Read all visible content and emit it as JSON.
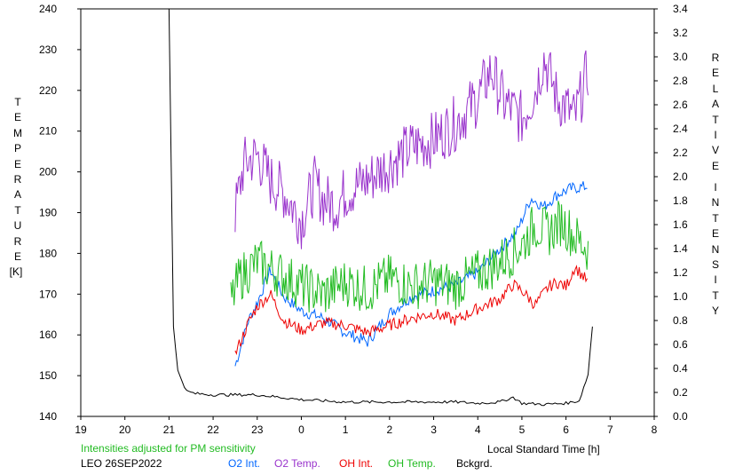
{
  "chart_data": {
    "type": "line",
    "left_axis_label": [
      "T",
      "E",
      "M",
      "P",
      "E",
      "R",
      "A",
      "T",
      "U",
      "R",
      "E"
    ],
    "left_axis_unit": "[K]",
    "right_axis_label_1": [
      "R",
      "E",
      "L",
      "A",
      "T",
      "I",
      "V",
      "E"
    ],
    "right_axis_label_2": [
      "I",
      "N",
      "T",
      "E",
      "N",
      "S",
      "I",
      "T",
      "Y"
    ],
    "xlabel": "Local Standard Time [h]",
    "x_range": [
      19,
      32
    ],
    "x_ticks": [
      "19",
      "20",
      "21",
      "22",
      "23",
      "0",
      "1",
      "2",
      "3",
      "4",
      "5",
      "6",
      "7",
      "8"
    ],
    "y_left_range": [
      140,
      240
    ],
    "y_left_ticks": [
      "140",
      "150",
      "160",
      "170",
      "180",
      "190",
      "200",
      "210",
      "220",
      "230",
      "240"
    ],
    "y_right_range": [
      0.0,
      3.4
    ],
    "y_right_ticks": [
      "0.0",
      "0.2",
      "0.4",
      "0.6",
      "0.8",
      "1.0",
      "1.2",
      "1.4",
      "1.6",
      "1.8",
      "2.0",
      "2.2",
      "2.4",
      "2.6",
      "2.8",
      "3.0",
      "3.2",
      "3.4"
    ],
    "grid": false,
    "note": "Intensities adjusted for PM sensitivity",
    "station_date": "LEO 26SEP2022",
    "series": [
      {
        "name": "O2 Int.",
        "color": "#0066ff",
        "axis": "right",
        "x": [
          22.5,
          22.8,
          23.0,
          23.3,
          23.6,
          24.0,
          24.5,
          25.0,
          25.5,
          26.0,
          26.5,
          27.0,
          27.5,
          28.0,
          28.5,
          28.9,
          29.2,
          29.5,
          29.8,
          30.1,
          30.5
        ],
        "values": [
          0.42,
          0.8,
          0.95,
          1.22,
          1.0,
          0.88,
          0.82,
          0.7,
          0.62,
          0.86,
          1.0,
          1.05,
          1.1,
          1.2,
          1.4,
          1.55,
          1.82,
          1.75,
          1.85,
          1.9,
          1.92
        ]
      },
      {
        "name": "O2 Temp.",
        "color": "#9933cc",
        "axis": "left",
        "x": [
          22.5,
          22.7,
          23.0,
          23.3,
          23.6,
          24.0,
          24.3,
          24.5,
          24.8,
          25.0,
          25.5,
          26.0,
          26.5,
          27.0,
          27.5,
          28.0,
          28.3,
          28.6,
          29.0,
          29.3,
          29.5,
          29.8,
          30.0,
          30.2,
          30.5
        ],
        "values": [
          190,
          202,
          204,
          198,
          195,
          188,
          197,
          193,
          192,
          195,
          198,
          202,
          206,
          208,
          212,
          218,
          225,
          217,
          213,
          220,
          228,
          218,
          216,
          213,
          225
        ]
      },
      {
        "name": "OH Int.",
        "color": "#ee0000",
        "axis": "right",
        "x": [
          22.5,
          22.8,
          23.0,
          23.3,
          23.6,
          24.0,
          24.5,
          25.0,
          25.5,
          26.0,
          26.5,
          27.0,
          27.5,
          28.0,
          28.5,
          28.8,
          29.0,
          29.3,
          29.6,
          29.8,
          30.0,
          30.2,
          30.5
        ],
        "values": [
          0.52,
          0.78,
          0.92,
          1.02,
          0.8,
          0.72,
          0.78,
          0.76,
          0.7,
          0.76,
          0.82,
          0.86,
          0.8,
          0.9,
          0.98,
          1.1,
          1.05,
          0.93,
          1.08,
          1.12,
          1.08,
          1.25,
          1.12
        ]
      },
      {
        "name": "OH Temp.",
        "color": "#22bb22",
        "axis": "left",
        "x": [
          22.4,
          22.6,
          23.0,
          23.5,
          24.0,
          24.5,
          25.0,
          25.5,
          26.0,
          26.5,
          27.0,
          27.5,
          28.0,
          28.5,
          29.0,
          29.3,
          29.6,
          29.9,
          30.2,
          30.5
        ],
        "values": [
          168,
          174,
          178,
          175,
          172,
          170,
          173,
          171,
          174,
          172,
          173,
          172,
          175,
          178,
          182,
          187,
          185,
          188,
          184,
          181
        ]
      },
      {
        "name": "Bckgrd.",
        "color": "#000000",
        "axis": "right",
        "x": [
          20.6,
          20.8,
          21.0,
          21.1,
          21.2,
          21.4,
          21.6,
          22.0,
          23.0,
          24.0,
          25.0,
          26.0,
          26.5,
          27.0,
          27.5,
          28.0,
          28.5,
          28.8,
          29.0,
          29.5,
          30.0,
          30.3,
          30.5,
          30.6
        ],
        "values": [
          3.4,
          3.4,
          3.4,
          0.75,
          0.38,
          0.21,
          0.19,
          0.18,
          0.18,
          0.14,
          0.12,
          0.12,
          0.12,
          0.12,
          0.12,
          0.11,
          0.12,
          0.16,
          0.11,
          0.1,
          0.11,
          0.13,
          0.35,
          0.75
        ]
      }
    ]
  }
}
